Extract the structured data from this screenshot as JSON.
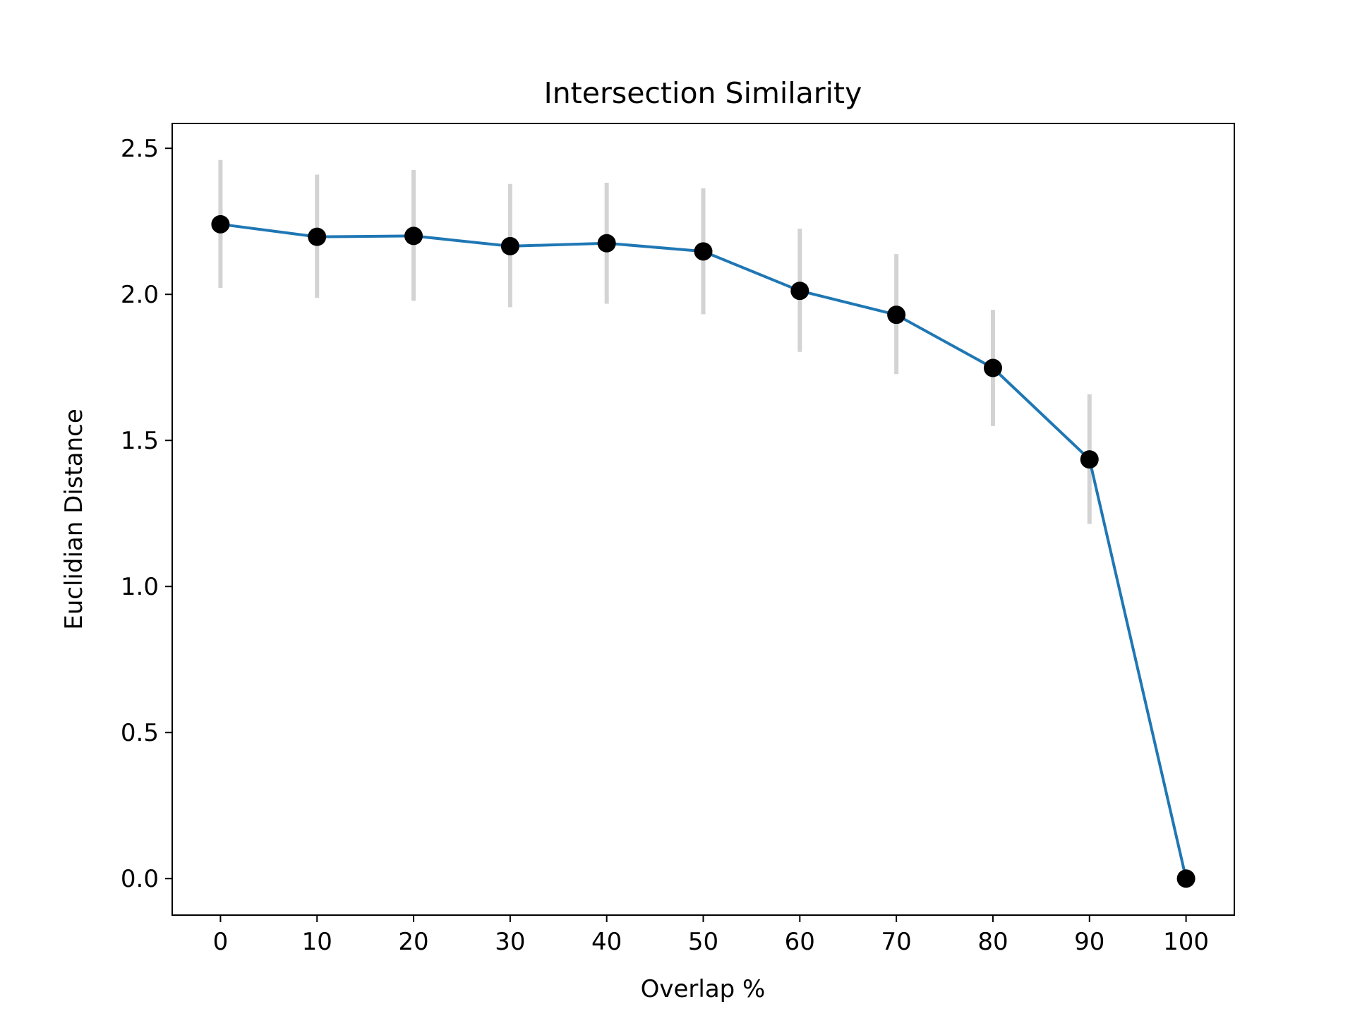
{
  "chart_data": {
    "type": "line",
    "title": "Intersection Similarity",
    "xlabel": "Overlap %",
    "ylabel": "Euclidian Distance",
    "x": [
      0,
      10,
      20,
      30,
      40,
      50,
      60,
      70,
      80,
      90,
      100
    ],
    "xticks": [
      "0",
      "10",
      "20",
      "30",
      "40",
      "50",
      "60",
      "70",
      "80",
      "90",
      "100"
    ],
    "yticks": [
      "0.0",
      "0.5",
      "1.0",
      "1.5",
      "2.0",
      "2.5"
    ],
    "xlim": [
      -5,
      105
    ],
    "ylim": [
      -0.125,
      2.585
    ],
    "grid": false,
    "legend": "none",
    "series": [
      {
        "values": [
          2.24,
          2.197,
          2.2,
          2.165,
          2.175,
          2.147,
          2.012,
          1.93,
          1.748,
          1.435,
          0.0
        ],
        "error_low": [
          2.022,
          1.988,
          1.978,
          1.956,
          1.968,
          1.932,
          1.803,
          1.727,
          1.549,
          1.214,
          0.0
        ],
        "error_high": [
          2.46,
          2.41,
          2.426,
          2.378,
          2.382,
          2.363,
          2.225,
          2.138,
          1.947,
          1.658,
          0.0
        ],
        "line_color": "#1f77b4",
        "marker_color": "#000000",
        "errorbar_color": "#d3d3d3"
      }
    ]
  }
}
